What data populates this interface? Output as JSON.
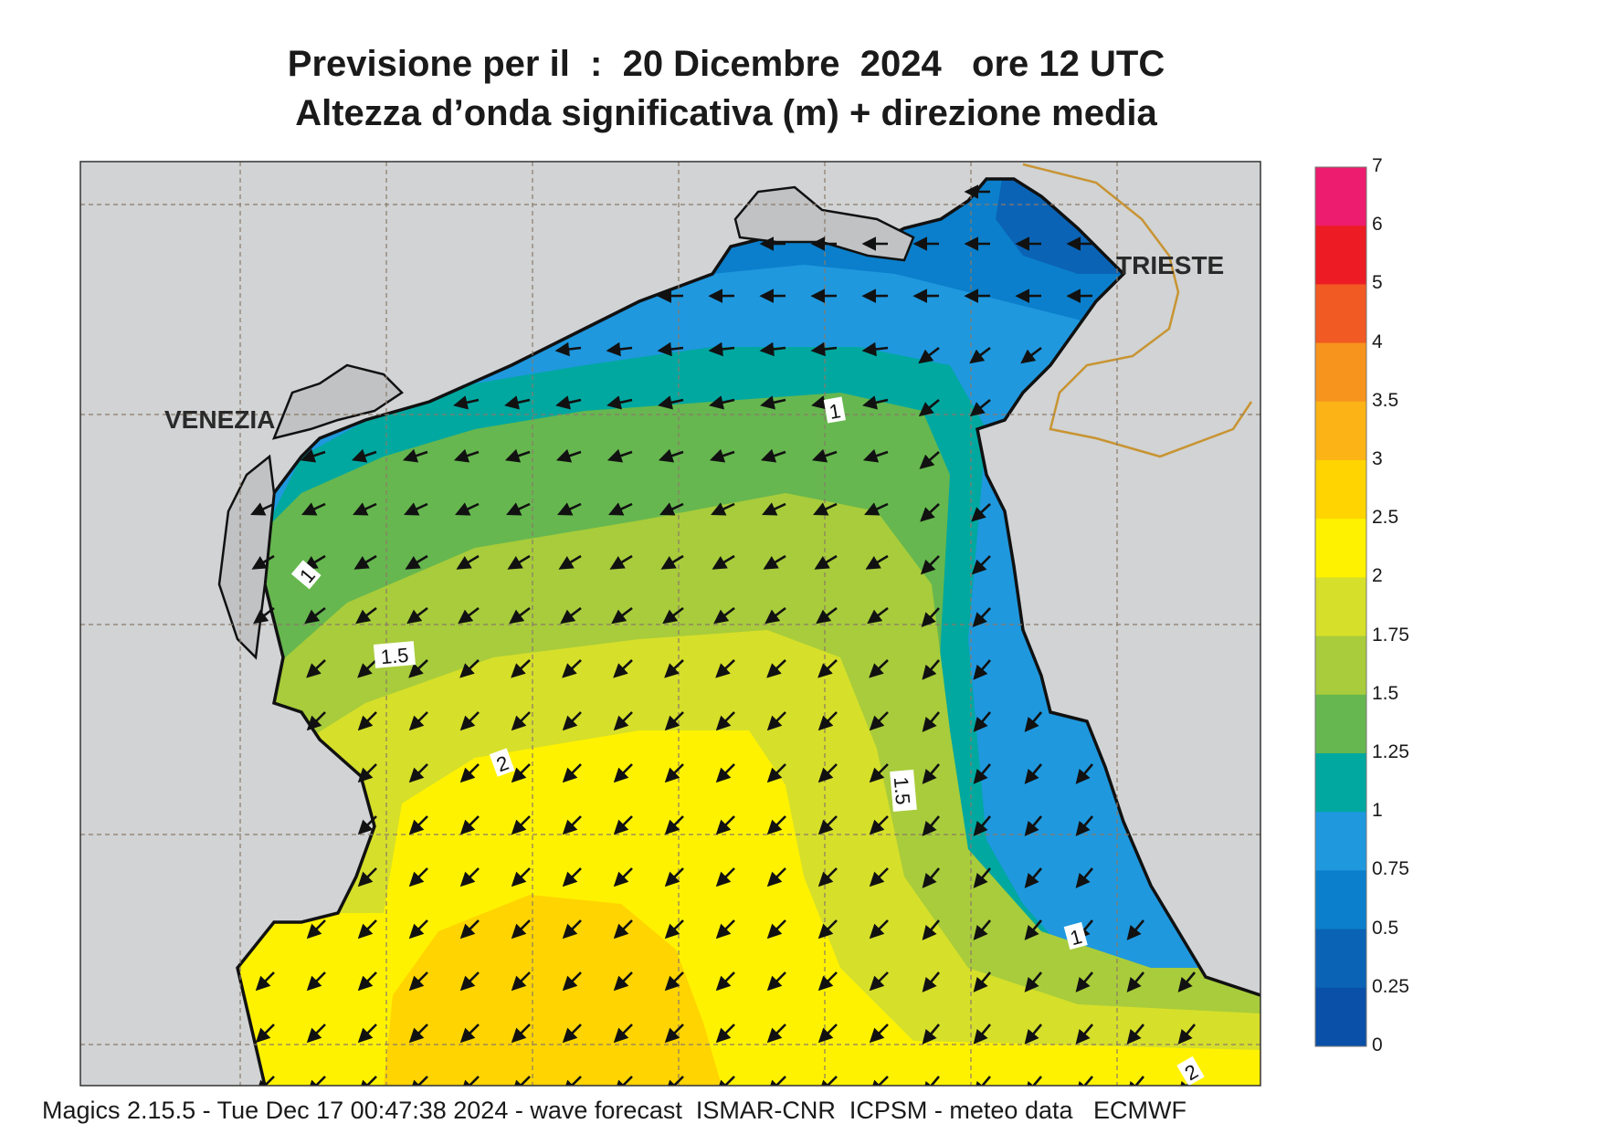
{
  "header": {
    "line1": "Previsione per il  :  20 Dicembre  2024   ore 12 UTC",
    "line2": "Altezza d’onda significativa (m) + direzione media"
  },
  "map": {
    "cities": [
      {
        "name": "VENEZIA",
        "x": 12.33,
        "y": 45.44
      },
      {
        "name": "TRIESTE",
        "x": 13.77,
        "y": 45.65
      }
    ],
    "lon_range": [
      12.0,
      13.95
    ],
    "lat_range": [
      44.6,
      45.8
    ],
    "contour_labels": [
      "1",
      "1.5",
      "1",
      "1.5",
      "2",
      "1",
      "2"
    ],
    "colors": {
      "sea_0_25": "#0a63b5",
      "sea_0_5": "#0b7fcb",
      "sea_0_75": "#1f98de",
      "sea_1": "#00a8a0",
      "sea_1_25": "#66b74f",
      "sea_1_5": "#a8cc3b",
      "sea_1_75": "#d6df2a",
      "sea_2": "#fff200",
      "sea_2_5": "#ffd400",
      "land": "#d1d3d4",
      "border": "#c89432"
    }
  },
  "colorbar": {
    "levels": [
      "7",
      "6",
      "5",
      "4",
      "3.5",
      "3",
      "2.5",
      "2",
      "1.75",
      "1.5",
      "1.25",
      "1",
      "0.75",
      "0.5",
      "0.25",
      "0"
    ],
    "colors": [
      "#ed1c6e",
      "#ed1c24",
      "#f15a22",
      "#f7941d",
      "#fbb316",
      "#ffd400",
      "#fff200",
      "#d6df2a",
      "#a8cc3b",
      "#66b74f",
      "#00a8a0",
      "#1f98de",
      "#0b7fcb",
      "#0a63b5",
      "#0a50a8"
    ]
  },
  "footer": {
    "text": "Magics 2.15.5 - Tue Dec 17 00:47:38 2024 - wave forecast  ISMAR-CNR  ICPSM - meteo data   ECMWF"
  }
}
